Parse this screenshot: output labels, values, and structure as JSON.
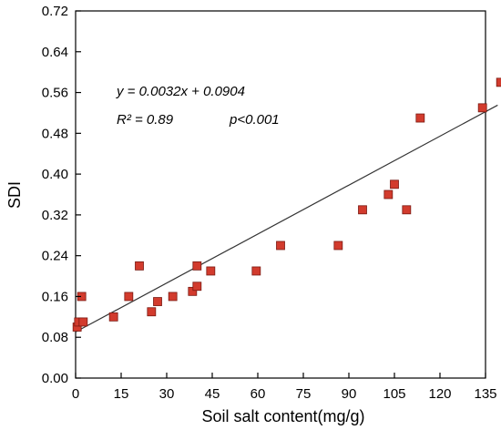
{
  "chart_data": {
    "type": "scatter",
    "title": "",
    "xlabel": "Soil salt content(mg/g)",
    "ylabel": "SDI",
    "xlim": [
      0,
      135
    ],
    "ylim": [
      0,
      0.72
    ],
    "xticks": [
      0,
      15,
      30,
      45,
      60,
      75,
      90,
      105,
      120,
      135
    ],
    "yticks": [
      0.0,
      0.08,
      0.16,
      0.24,
      0.32,
      0.4,
      0.48,
      0.56,
      0.64,
      0.72
    ],
    "xtick_labels": [
      "0",
      "15",
      "30",
      "45",
      "60",
      "75",
      "90",
      "105",
      "120",
      "135"
    ],
    "ytick_labels": [
      "0.00",
      "0.08",
      "0.16",
      "0.24",
      "0.32",
      "0.40",
      "0.48",
      "0.56",
      "0.64",
      "0.72"
    ],
    "grid": false,
    "legend": "none",
    "marker_color": "#d23b2d",
    "marker_edge_color": "#7a1a12",
    "fit_line_color": "#333333",
    "points": [
      {
        "x": 0.5,
        "y": 0.1
      },
      {
        "x": 1.0,
        "y": 0.11
      },
      {
        "x": 2.0,
        "y": 0.16
      },
      {
        "x": 2.5,
        "y": 0.11
      },
      {
        "x": 12.5,
        "y": 0.12
      },
      {
        "x": 17.5,
        "y": 0.16
      },
      {
        "x": 21.0,
        "y": 0.22
      },
      {
        "x": 25.0,
        "y": 0.13
      },
      {
        "x": 27.0,
        "y": 0.15
      },
      {
        "x": 32.0,
        "y": 0.16
      },
      {
        "x": 38.5,
        "y": 0.17
      },
      {
        "x": 40.0,
        "y": 0.18
      },
      {
        "x": 40.0,
        "y": 0.22
      },
      {
        "x": 44.5,
        "y": 0.21
      },
      {
        "x": 59.5,
        "y": 0.21
      },
      {
        "x": 67.5,
        "y": 0.26
      },
      {
        "x": 86.5,
        "y": 0.26
      },
      {
        "x": 94.5,
        "y": 0.33
      },
      {
        "x": 103.0,
        "y": 0.36
      },
      {
        "x": 105.0,
        "y": 0.38
      },
      {
        "x": 109.0,
        "y": 0.33
      },
      {
        "x": 113.5,
        "y": 0.51
      },
      {
        "x": 134.0,
        "y": 0.53
      },
      {
        "x": 140.0,
        "y": 0.58
      }
    ],
    "fit": {
      "slope": 0.0032,
      "intercept": 0.0904,
      "x_range": [
        0,
        139
      ]
    },
    "annotations": {
      "equation": "y = 0.0032x + 0.0904",
      "r2": "R² = 0.89",
      "p": "p<0.001"
    }
  }
}
